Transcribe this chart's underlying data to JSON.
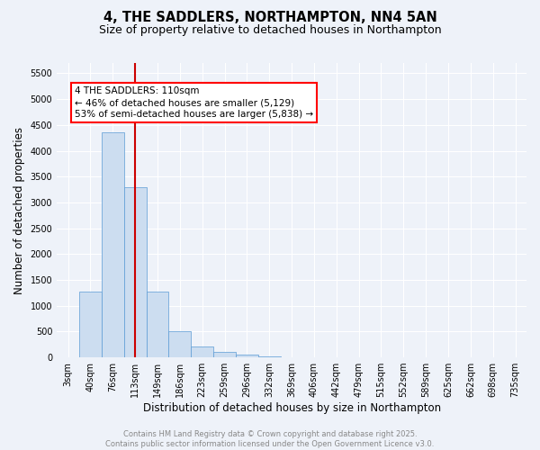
{
  "title": "4, THE SADDLERS, NORTHAMPTON, NN4 5AN",
  "subtitle": "Size of property relative to detached houses in Northampton",
  "xlabel": "Distribution of detached houses by size in Northampton",
  "ylabel": "Number of detached properties",
  "bar_color": "#ccddf0",
  "bar_edge_color": "#5b9bd5",
  "background_color": "#eef2f9",
  "grid_color": "#ffffff",
  "categories": [
    "3sqm",
    "40sqm",
    "76sqm",
    "113sqm",
    "149sqm",
    "186sqm",
    "223sqm",
    "259sqm",
    "296sqm",
    "332sqm",
    "369sqm",
    "406sqm",
    "442sqm",
    "479sqm",
    "515sqm",
    "552sqm",
    "589sqm",
    "625sqm",
    "662sqm",
    "698sqm",
    "735sqm"
  ],
  "values": [
    0,
    1270,
    4350,
    3300,
    1280,
    500,
    210,
    100,
    50,
    15,
    5,
    2,
    0,
    0,
    0,
    0,
    0,
    0,
    0,
    0,
    0
  ],
  "vline_x_index": 3,
  "vline_color": "#cc0000",
  "annotation_text": "4 THE SADDLERS: 110sqm\n← 46% of detached houses are smaller (5,129)\n53% of semi-detached houses are larger (5,838) →",
  "ylim": [
    0,
    5700
  ],
  "yticks": [
    0,
    500,
    1000,
    1500,
    2000,
    2500,
    3000,
    3500,
    4000,
    4500,
    5000,
    5500
  ],
  "footer_text": "Contains HM Land Registry data © Crown copyright and database right 2025.\nContains public sector information licensed under the Open Government Licence v3.0.",
  "title_fontsize": 10.5,
  "subtitle_fontsize": 9,
  "tick_fontsize": 7,
  "ylabel_fontsize": 8.5,
  "xlabel_fontsize": 8.5,
  "footer_fontsize": 6,
  "ann_fontsize": 7.5
}
